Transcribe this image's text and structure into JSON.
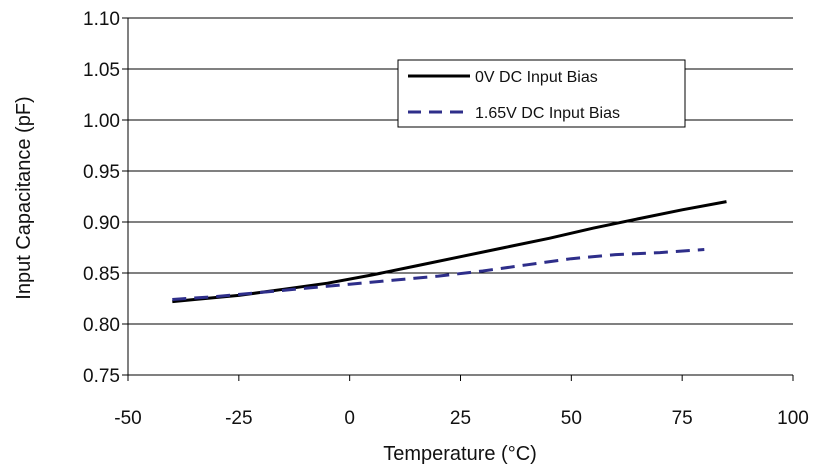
{
  "chart_data": {
    "type": "line",
    "title": "",
    "xlabel": "Temperature (°C)",
    "ylabel": "Input Capacitance (pF)",
    "xlim": [
      -50,
      100
    ],
    "ylim": [
      0.75,
      1.1
    ],
    "x_ticks": [
      "-50",
      "-25",
      "0",
      "25",
      "50",
      "75",
      "100"
    ],
    "y_ticks": [
      "0.75",
      "0.80",
      "0.85",
      "0.90",
      "0.95",
      "1.00",
      "1.05",
      "1.10"
    ],
    "grid": "horizontal",
    "legend_position": "top-right",
    "series": [
      {
        "name": "0V DC Input Bias",
        "color": "#000000",
        "style": "solid",
        "x": [
          -40,
          -35,
          -25,
          -15,
          -5,
          5,
          15,
          25,
          35,
          45,
          55,
          65,
          75,
          85
        ],
        "y": [
          0.822,
          0.824,
          0.828,
          0.834,
          0.84,
          0.848,
          0.857,
          0.866,
          0.875,
          0.884,
          0.894,
          0.903,
          0.912,
          0.92
        ]
      },
      {
        "name": "1.65V DC Input Bias",
        "color": "#2e2e8a",
        "style": "dashed",
        "x": [
          -40,
          -30,
          -20,
          -10,
          0,
          10,
          20,
          30,
          40,
          50,
          60,
          70,
          80
        ],
        "y": [
          0.824,
          0.827,
          0.831,
          0.835,
          0.839,
          0.843,
          0.847,
          0.852,
          0.858,
          0.864,
          0.868,
          0.87,
          0.873
        ]
      }
    ]
  }
}
